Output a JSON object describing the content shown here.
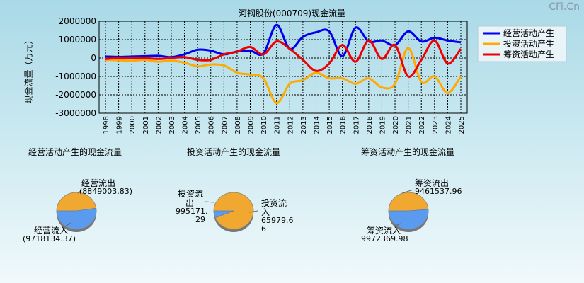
{
  "watermark": "CFi.Cn",
  "line_title": "河钢股份(000709)现金流量",
  "ylabel": "现金流量（万元）",
  "pie_titles": [
    "经营活动产生的现金流量",
    "投资活动产生的现金流量",
    "筹资活动产生的现金流量"
  ],
  "pie_labels": {
    "op_out": "经营流出",
    "op_out_val": "(8849003.83)",
    "op_in": "经营流入",
    "op_in_val": "(9718134.37)",
    "inv_out_a": "投资流",
    "inv_out_b": "出",
    "inv_out_c": "995171.",
    "inv_out_d": "29",
    "inv_in_a": "投资流",
    "inv_in_b": "入",
    "inv_in_c": "65979.6",
    "inv_in_d": "6",
    "fin_out": "筹资流出",
    "fin_out_val": "9461537.96",
    "fin_in": "筹资流入",
    "fin_in_val": "9972369.98"
  },
  "colors": {
    "operating": "#0000ee",
    "investing": "#ffaa00",
    "financing": "#ee0000",
    "pie_blue": "#5b9bef",
    "pie_orange": "#f0a830"
  },
  "chart_data": [
    {
      "type": "line",
      "title": "河钢股份(000709)现金流量",
      "ylabel": "现金流量（万元）",
      "ylim": [
        -3000000,
        2000000
      ],
      "yticks": [
        "2000000",
        "1000000",
        "0",
        "-1000000",
        "-2000000",
        "-3000000"
      ],
      "grid": true,
      "legend": "top-right",
      "x": [
        "1998",
        "1999",
        "2000",
        "2001",
        "2002",
        "2003",
        "2004",
        "2005",
        "2006",
        "2007",
        "2008",
        "2009",
        "2010",
        "2011",
        "2012",
        "2013",
        "2014",
        "2015",
        "2016",
        "2017",
        "2018",
        "2019",
        "2020",
        "2021",
        "2022",
        "2023",
        "2024",
        "2025"
      ],
      "series": [
        {
          "name": "经营活动产生",
          "values": [
            80000,
            60000,
            80000,
            100000,
            120000,
            50000,
            200000,
            450000,
            400000,
            200000,
            350000,
            400000,
            250000,
            1800000,
            500000,
            1150000,
            1400000,
            1450000,
            100000,
            1650000,
            900000,
            950000,
            700000,
            1450000,
            900000,
            1100000,
            950000,
            850000
          ]
        },
        {
          "name": "投资活动产生",
          "values": [
            -100000,
            -120000,
            -150000,
            -100000,
            -200000,
            -150000,
            -250000,
            -450000,
            -350000,
            -400000,
            -800000,
            -900000,
            -1100000,
            -2450000,
            -1400000,
            -1200000,
            -800000,
            -1100000,
            -1100000,
            -1400000,
            -1100000,
            -1600000,
            -1400000,
            550000,
            -1300000,
            -1000000,
            -1900000,
            -1000000
          ]
        },
        {
          "name": "筹资活动产生",
          "values": [
            -50000,
            0,
            20000,
            0,
            -50000,
            0,
            50000,
            -100000,
            -100000,
            200000,
            350000,
            600000,
            200000,
            900000,
            500000,
            -100000,
            -700000,
            -300000,
            700000,
            -200000,
            950000,
            -50000,
            700000,
            -1000000,
            -100000,
            950000,
            -300000,
            500000
          ]
        }
      ]
    },
    {
      "type": "pie",
      "title": "经营活动产生的现金流量",
      "labels": [
        "经营流出",
        "经营流入"
      ],
      "values": [
        8849003.83,
        9718134.37
      ]
    },
    {
      "type": "pie",
      "title": "投资活动产生的现金流量",
      "labels": [
        "投资流出",
        "投资流入"
      ],
      "values": [
        995171.29,
        65979.66
      ]
    },
    {
      "type": "pie",
      "title": "筹资活动产生的现金流量",
      "labels": [
        "筹资流出",
        "筹资流入"
      ],
      "values": [
        9461537.96,
        9972369.98
      ]
    }
  ]
}
